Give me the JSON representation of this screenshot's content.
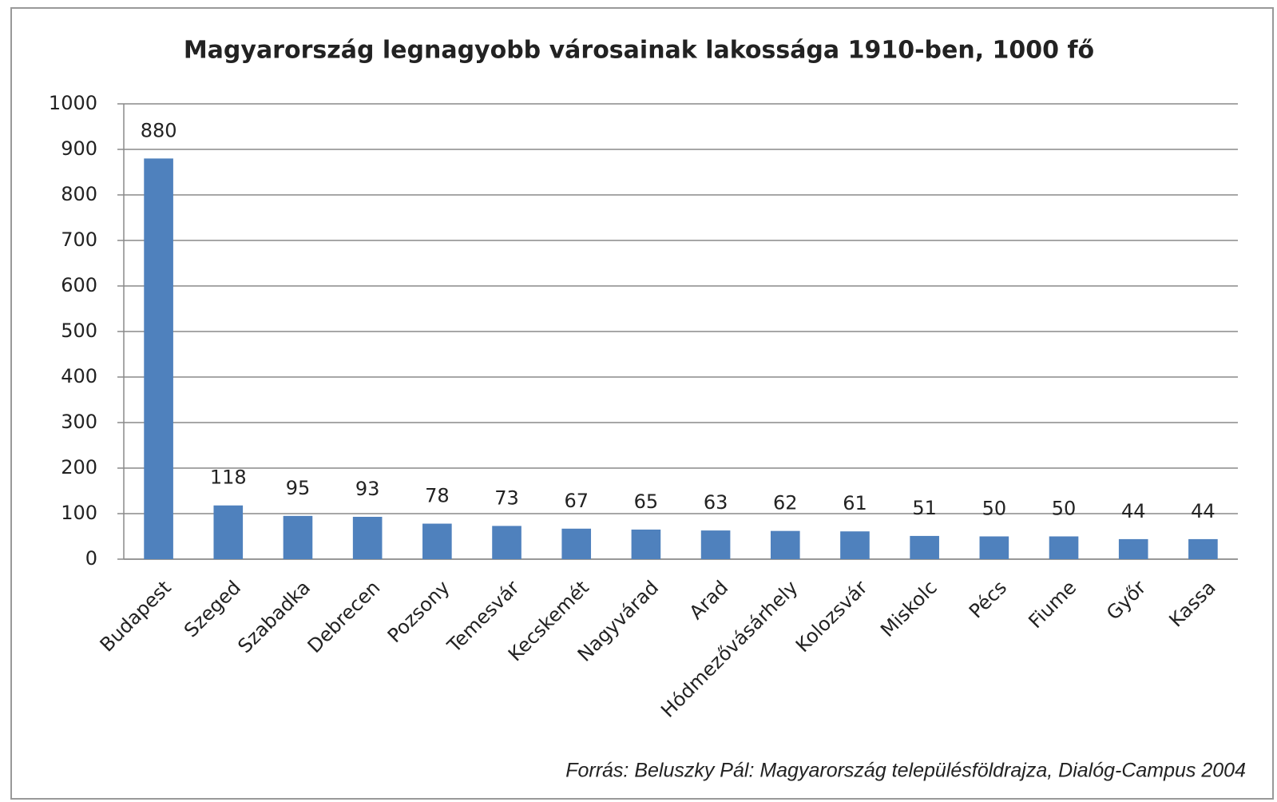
{
  "chart_data": {
    "type": "bar",
    "title": "Magyarország legnagyobb városainak lakossága 1910-ben, 1000 fő",
    "categories": [
      "Budapest",
      "Szeged",
      "Szabadka",
      "Debrecen",
      "Pozsony",
      "Temesvár",
      "Kecskemét",
      "Nagyvárad",
      "Arad",
      "Hódmezővásárhely",
      "Kolozsvár",
      "Miskolc",
      "Pécs",
      "Fiume",
      "Győr",
      "Kassa"
    ],
    "values": [
      880,
      118,
      95,
      93,
      78,
      73,
      67,
      65,
      63,
      62,
      61,
      51,
      50,
      50,
      44,
      44
    ],
    "color": "#4f81bd",
    "ylim": [
      0,
      1000
    ],
    "yticks": [
      0,
      100,
      200,
      300,
      400,
      500,
      600,
      700,
      800,
      900,
      1000
    ],
    "grid": true,
    "source": "Forrás: Beluszky Pál: Magyarország településföldrajza, Dialóg-Campus 2004"
  }
}
